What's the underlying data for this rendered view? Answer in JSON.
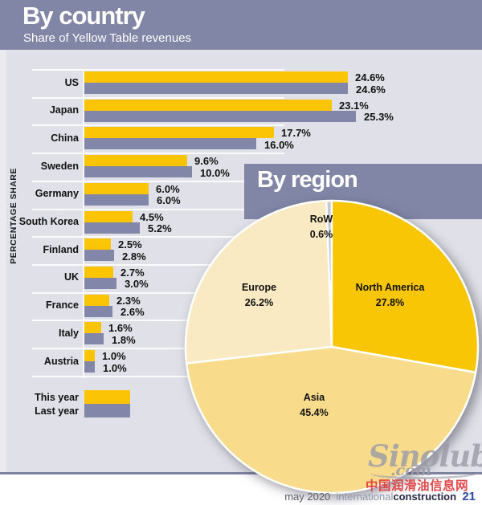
{
  "header": {
    "title": "By country",
    "subtitle": "Share of Yellow Table revenues"
  },
  "axis": {
    "ylabel": "PERCENTAGE SHARE"
  },
  "legend": {
    "this_year": "This year",
    "last_year": "Last year"
  },
  "region": {
    "title": "By region"
  },
  "footer": {
    "date": "may 2020",
    "magazine_part1": "international",
    "magazine_part2": "construction",
    "page": "21"
  },
  "watermark": {
    "script": "Sinolub",
    "domain": ".com",
    "chinese": "中国润滑油信息网"
  },
  "colors": {
    "purple_band": "#8185A6",
    "bar_yellow": "#FBC505",
    "bar_purple": "#8287A9",
    "pie_north_america": "#F9C606",
    "pie_asia": "#F8DC8C",
    "pie_europe": "#FAEAC3",
    "pie_row": "#C9C9CD",
    "background": "#E0E0E8"
  },
  "chart_data": [
    {
      "type": "bar",
      "orientation": "horizontal",
      "title": "By country",
      "subtitle": "Share of Yellow Table revenues",
      "ylabel": "PERCENTAGE SHARE",
      "unit": "%",
      "xlim": [
        0,
        27.5
      ],
      "grid": false,
      "legend_position": "bottom-left",
      "categories": [
        "US",
        "Japan",
        "China",
        "Sweden",
        "Germany",
        "South Korea",
        "Finland",
        "UK",
        "France",
        "Italy",
        "Austria"
      ],
      "series": [
        {
          "name": "This year",
          "values": [
            24.6,
            23.1,
            17.7,
            9.6,
            6.0,
            4.5,
            2.5,
            2.7,
            2.3,
            1.6,
            1.0
          ]
        },
        {
          "name": "Last year",
          "values": [
            24.6,
            25.3,
            16.0,
            10.0,
            6.0,
            5.2,
            2.8,
            3.0,
            2.6,
            1.8,
            1.0
          ]
        }
      ]
    },
    {
      "type": "pie",
      "title": "By region",
      "slices": [
        {
          "label": "RoW",
          "value": 0.6,
          "display": "0.6%"
        },
        {
          "label": "North America",
          "value": 27.8,
          "display": "27.8%"
        },
        {
          "label": "Asia",
          "value": 45.4,
          "display": "45.4%"
        },
        {
          "label": "Europe",
          "value": 26.2,
          "display": "26.2%"
        }
      ]
    }
  ]
}
